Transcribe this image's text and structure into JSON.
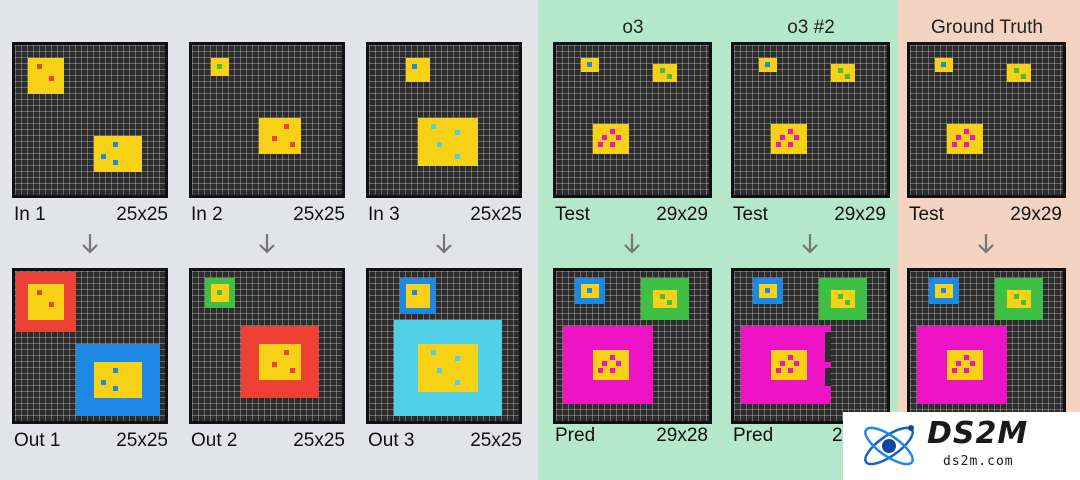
{
  "columns": {
    "o3": "o3",
    "o3_2": "o3 #2",
    "ground_truth": "Ground Truth"
  },
  "pairs": [
    {
      "in_label": "In 1",
      "in_size": "25x25",
      "out_label": "Out 1",
      "out_size": "25x25"
    },
    {
      "in_label": "In 2",
      "in_size": "25x25",
      "out_label": "Out 2",
      "out_size": "25x25"
    },
    {
      "in_label": "In 3",
      "in_size": "25x25",
      "out_label": "Out 3",
      "out_size": "25x25"
    }
  ],
  "tests": [
    {
      "in_label": "Test",
      "in_size": "29x29",
      "out_label": "Pred",
      "out_size": "29x28"
    },
    {
      "in_label": "Test",
      "in_size": "29x29",
      "out_label": "Pred",
      "out_size": ""
    },
    {
      "in_label": "Test",
      "in_size": "29x29",
      "out_label": "",
      "out_size": ""
    }
  ],
  "watermark": {
    "title": "DS2M",
    "subtitle": "ds2m.com"
  },
  "colors": {
    "yellow": "#f7d116",
    "red": "#ee4135",
    "blue": "#1e88e5",
    "green": "#3fbf45",
    "cyan": "#4fcfe8",
    "magenta": "#ee14c5",
    "grid_bg": "#2c2c2c",
    "panel_gray": "#e3e4e8",
    "panel_green": "#b5e8cb",
    "panel_peach": "#f5d3c2"
  }
}
